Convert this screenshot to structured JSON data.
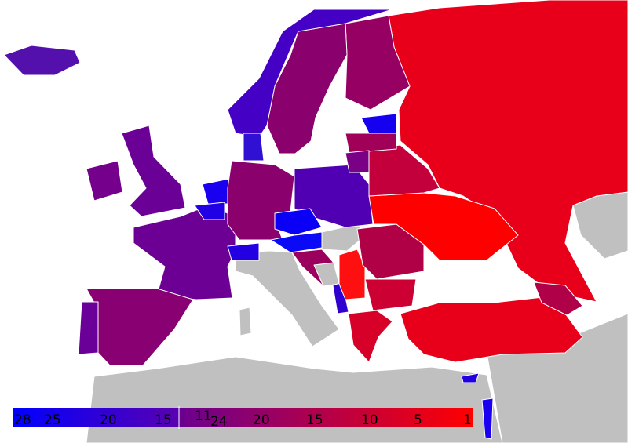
{
  "legend": {
    "left_scale": {
      "labels": [
        "28",
        "25",
        "20",
        "15",
        "11"
      ],
      "color_start": "#0000ff",
      "color_end": "#5a00b0"
    },
    "right_scale": {
      "labels": [
        "24",
        "20",
        "15",
        "10",
        "5",
        "1"
      ],
      "color_start": "#6a0090",
      "color_end": "#ff0000"
    }
  },
  "colors": {
    "no_data": "#c0c0c0",
    "russia": "#e8001a",
    "finland": "#960062",
    "sweden": "#8a006c",
    "norway": "#4400c4",
    "iceland": "#5410ac",
    "uk": "#6a0096",
    "ireland": "#74008c",
    "france": "#6c0094",
    "spain": "#880072",
    "portugal": "#6a0098",
    "netherlands": "#1a00f0",
    "belgium": "#2200e6",
    "germany": "#8a006c",
    "denmark": "#3010d2",
    "poland": "#5000b2",
    "czechia": "#0a00f6",
    "austria": "#0a0af6",
    "switzerland": "#2200e2",
    "croatia": "#9a005c",
    "montenegro": "#3000d0",
    "serbia": "#ff1010",
    "romania": "#b00046",
    "bulgaria": "#cc0032",
    "greece": "#d60028",
    "turkey": "#e8001a",
    "ukraine": "#ff0000",
    "belarus": "#c4003c",
    "estonia": "#1600f0",
    "latvia": "#a00058",
    "lithuania": "#7a0086",
    "cyprus": "#2000e0",
    "israel": "#1a00f0",
    "caucasus": "#b00048"
  }
}
